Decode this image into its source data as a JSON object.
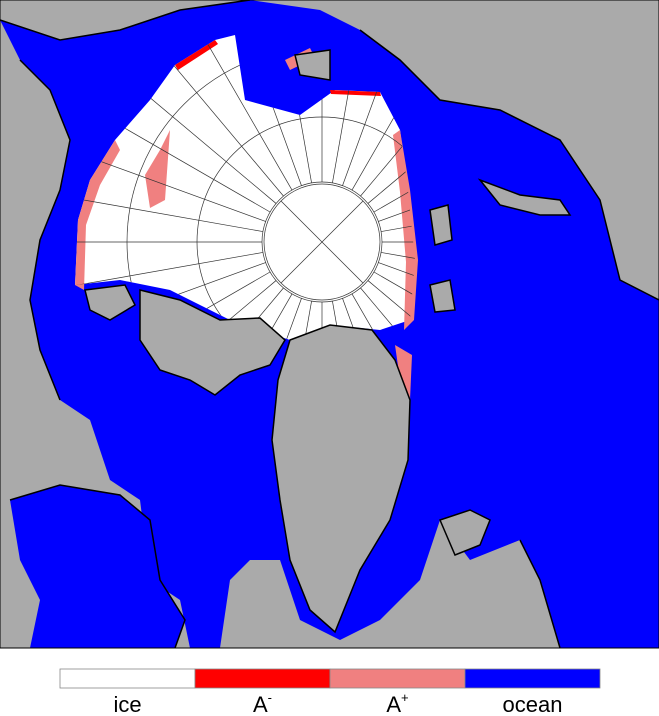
{
  "legend": {
    "items": [
      {
        "label": "ice",
        "color": "#ffffff"
      },
      {
        "label": "A",
        "sup": "-",
        "color": "#ff0000"
      },
      {
        "label": "A",
        "sup": "+",
        "color": "#f08080"
      },
      {
        "label": "ocean",
        "color": "#0000ff"
      }
    ]
  }
}
